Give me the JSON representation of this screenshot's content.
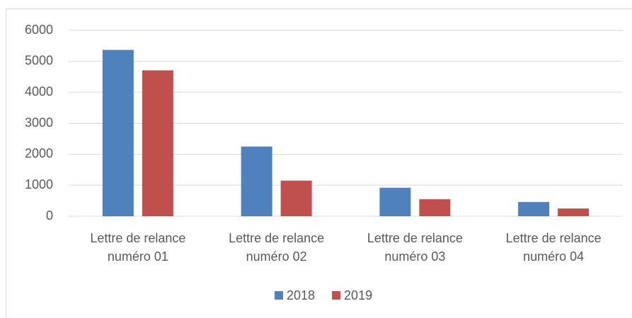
{
  "chart_data": {
    "type": "bar",
    "categories": [
      "Lettre de relance numéro 01",
      "Lettre de relance numéro 02",
      "Lettre de relance numéro 03",
      "Lettre de relance numéro 04"
    ],
    "series": [
      {
        "name": "2018",
        "color": "#4f81bd",
        "values": [
          5370,
          2250,
          920,
          460
        ]
      },
      {
        "name": "2019",
        "color": "#c0504d",
        "values": [
          4710,
          1150,
          550,
          250
        ]
      }
    ],
    "ylim": [
      0,
      6000
    ],
    "yticks": [
      0,
      1000,
      2000,
      3000,
      4000,
      5000,
      6000
    ],
    "grid": true,
    "legend": "bottom"
  }
}
